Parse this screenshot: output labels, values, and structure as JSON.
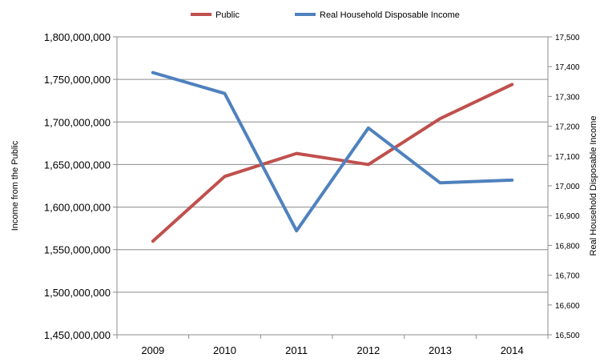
{
  "chart_data": {
    "type": "line",
    "title": "",
    "categories": [
      "2009",
      "2010",
      "2011",
      "2012",
      "2013",
      "2014"
    ],
    "ylabel": "Income from the Public",
    "y2label": "Real Household Disposable Income",
    "ylim": [
      1450000000,
      1800000000
    ],
    "y2lim": [
      16500,
      17500
    ],
    "yticks": [
      "1,450,000,000",
      "1,500,000,000",
      "1,550,000,000",
      "1,600,000,000",
      "1,650,000,000",
      "1,700,000,000",
      "1,750,000,000",
      "1,800,000,000"
    ],
    "y2ticks": [
      "16,500",
      "16,600",
      "16,700",
      "16,800",
      "16,900",
      "17,000",
      "17,100",
      "17,200",
      "17,300",
      "17,400",
      "17,500"
    ],
    "grid": true,
    "legend_position": "top",
    "series": [
      {
        "name": "Public",
        "axis": "left",
        "color": "#C0504D",
        "values": [
          1560000000,
          1636000000,
          1663000000,
          1650000000,
          1704000000,
          1744000000
        ]
      },
      {
        "name": "Real Household Disposable Income",
        "axis": "right",
        "color": "#4F81BD",
        "values": [
          17380,
          17310,
          16849,
          17194,
          17010,
          17019
        ]
      }
    ]
  }
}
